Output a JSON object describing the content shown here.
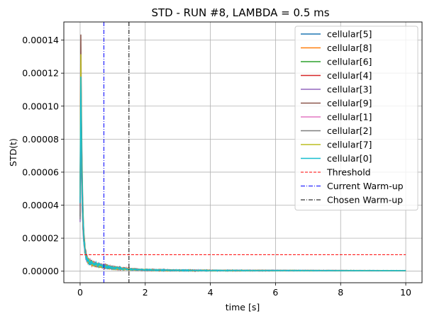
{
  "chart_data": {
    "type": "line",
    "title": "STD - RUN #8, LAMBDA = 0.5 ms",
    "xlabel": "time [s]",
    "ylabel": "STD(t)",
    "xlim": [
      -0.5,
      10.5
    ],
    "ylim": [
      -7e-06,
      0.000151
    ],
    "x_ticks": [
      0,
      2,
      4,
      6,
      8,
      10
    ],
    "x_tick_labels": [
      "0",
      "2",
      "4",
      "6",
      "8",
      "10"
    ],
    "y_ticks": [
      0,
      2e-05,
      4e-05,
      6e-05,
      8e-05,
      0.0001,
      0.00012,
      0.00014
    ],
    "y_tick_labels": [
      "0.00000",
      "0.00002",
      "0.00004",
      "0.00006",
      "0.00008",
      "0.00010",
      "0.00012",
      "0.00014"
    ],
    "grid": true,
    "legend_position": "top-right",
    "series": [
      {
        "name": "cellular[5]",
        "color": "#1f77b4",
        "peak": 0.000118,
        "seed": 5
      },
      {
        "name": "cellular[8]",
        "color": "#ff7f0e",
        "peak": 0.000124,
        "seed": 8
      },
      {
        "name": "cellular[6]",
        "color": "#2ca02c",
        "peak": 9.5e-05,
        "seed": 6
      },
      {
        "name": "cellular[4]",
        "color": "#d62728",
        "peak": 0.000112,
        "seed": 4
      },
      {
        "name": "cellular[3]",
        "color": "#9467bd",
        "peak": 8.5e-05,
        "seed": 3
      },
      {
        "name": "cellular[9]",
        "color": "#8c564b",
        "peak": 0.000144,
        "seed": 9
      },
      {
        "name": "cellular[1]",
        "color": "#e377c2",
        "peak": 0.000105,
        "seed": 1
      },
      {
        "name": "cellular[2]",
        "color": "#7f7f7f",
        "peak": 9e-05,
        "seed": 2
      },
      {
        "name": "cellular[7]",
        "color": "#bcbd22",
        "peak": 0.00013,
        "seed": 7
      },
      {
        "name": "cellular[0]",
        "color": "#17becf",
        "peak": 0.000118,
        "seed": 10
      }
    ],
    "reference_lines": [
      {
        "name": "Threshold",
        "orientation": "horizontal",
        "y": 1e-05,
        "x_range": [
          0,
          10
        ],
        "color": "#ff0000",
        "dash": "dashed"
      },
      {
        "name": "Current Warm-up",
        "orientation": "vertical",
        "x": 0.73,
        "color": "#0000ff",
        "dash": "dashdot"
      },
      {
        "name": "Chosen Warm-up",
        "orientation": "vertical",
        "x": 1.5,
        "color": "#000000",
        "dash": "dashdot"
      }
    ]
  }
}
